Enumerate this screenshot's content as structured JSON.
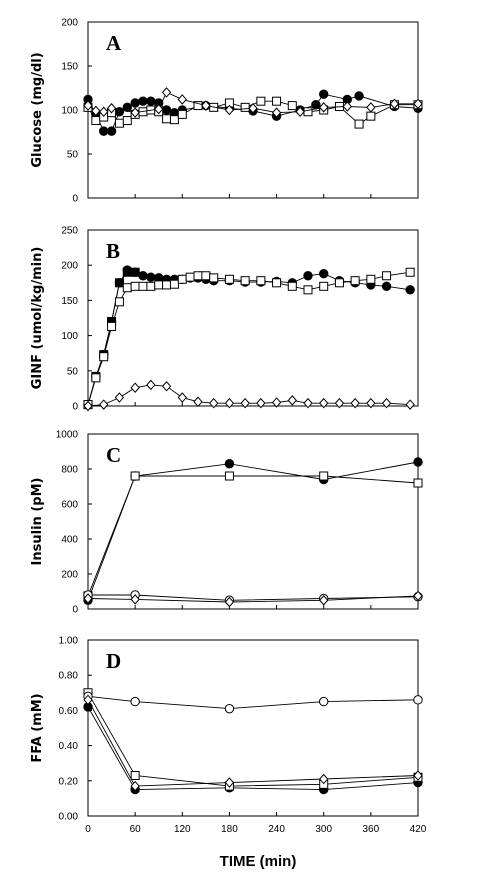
{
  "chart_data": [
    {
      "type": "line",
      "panel_label": "A",
      "ylabel": "Glucose (mg/dl)",
      "ylim": [
        0,
        200
      ],
      "yticks": [
        "0",
        "50",
        "100",
        "150",
        "200"
      ],
      "xlim": [
        0,
        420
      ],
      "grid": false,
      "series": [
        {
          "marker": "filled-circle",
          "x": [
            0,
            10,
            20,
            30,
            40,
            50,
            60,
            70,
            80,
            90,
            100,
            110,
            120,
            150,
            180,
            210,
            240,
            270,
            290,
            300,
            330,
            345,
            390,
            420
          ],
          "y": [
            112,
            95,
            76,
            76,
            98,
            103,
            108,
            110,
            110,
            108,
            100,
            97,
            100,
            105,
            102,
            99,
            93,
            100,
            106,
            118,
            112,
            116,
            104,
            102
          ]
        },
        {
          "marker": "open-square",
          "x": [
            0,
            10,
            20,
            30,
            40,
            50,
            60,
            70,
            80,
            90,
            100,
            110,
            120,
            140,
            160,
            180,
            200,
            220,
            240,
            260,
            280,
            300,
            320,
            345,
            360,
            390,
            420
          ],
          "y": [
            103,
            88,
            92,
            97,
            85,
            88,
            95,
            98,
            100,
            98,
            90,
            89,
            95,
            105,
            103,
            108,
            103,
            110,
            110,
            105,
            98,
            100,
            104,
            84,
            93,
            106,
            106
          ]
        },
        {
          "marker": "open-diamond",
          "x": [
            0,
            10,
            20,
            30,
            60,
            90,
            100,
            120,
            150,
            180,
            210,
            240,
            270,
            300,
            330,
            360,
            390,
            420
          ],
          "y": [
            105,
            99,
            98,
            102,
            97,
            101,
            120,
            112,
            105,
            100,
            102,
            97,
            98,
            103,
            104,
            103,
            107,
            107
          ]
        }
      ]
    },
    {
      "type": "line",
      "panel_label": "B",
      "ylabel": "GINF (umol/kg/min)",
      "ylim": [
        0,
        250
      ],
      "yticks": [
        "0",
        "50",
        "100",
        "150",
        "200",
        "250"
      ],
      "xlim": [
        0,
        420
      ],
      "grid": false,
      "series": [
        {
          "marker": "filled-circle",
          "x": [
            0,
            10,
            20,
            30,
            40,
            50,
            60,
            70,
            80,
            90,
            100,
            110,
            120,
            130,
            140,
            150,
            160,
            180,
            200,
            220,
            240,
            260,
            280,
            300,
            320,
            340,
            360,
            380,
            410
          ],
          "y": [
            2,
            42,
            73,
            120,
            175,
            193,
            190,
            185,
            183,
            182,
            180,
            180,
            180,
            182,
            182,
            180,
            178,
            178,
            176,
            176,
            177,
            175,
            185,
            188,
            178,
            175,
            172,
            170,
            165
          ]
        },
        {
          "marker": "filled-square",
          "x": [
            0,
            10,
            20,
            30,
            40,
            50,
            60
          ],
          "y": [
            2,
            42,
            73,
            120,
            175,
            190,
            190
          ]
        },
        {
          "marker": "open-square",
          "x": [
            0,
            10,
            20,
            30,
            40,
            50,
            60,
            70,
            80,
            90,
            100,
            110,
            120,
            130,
            140,
            150,
            160,
            180,
            200,
            220,
            240,
            260,
            280,
            300,
            320,
            340,
            360,
            380,
            410
          ],
          "y": [
            2,
            40,
            70,
            113,
            148,
            168,
            170,
            170,
            170,
            172,
            172,
            173,
            180,
            183,
            185,
            185,
            182,
            180,
            178,
            178,
            175,
            170,
            165,
            170,
            175,
            178,
            180,
            185,
            190
          ]
        },
        {
          "marker": "open-diamond",
          "x": [
            0,
            20,
            40,
            60,
            80,
            100,
            120,
            140,
            160,
            180,
            200,
            220,
            240,
            260,
            280,
            300,
            320,
            340,
            360,
            380,
            410
          ],
          "y": [
            0,
            2,
            12,
            26,
            30,
            28,
            12,
            6,
            4,
            4,
            4,
            4,
            5,
            8,
            4,
            4,
            4,
            4,
            4,
            4,
            2
          ]
        }
      ]
    },
    {
      "type": "line",
      "panel_label": "C",
      "ylabel": "Insulin (pM)",
      "ylim": [
        0,
        1000
      ],
      "yticks": [
        "0",
        "200",
        "400",
        "600",
        "800",
        "1000"
      ],
      "xlim": [
        0,
        420
      ],
      "grid": false,
      "series": [
        {
          "marker": "filled-circle",
          "x": [
            0,
            60,
            180,
            300,
            420
          ],
          "y": [
            50,
            760,
            830,
            740,
            840
          ]
        },
        {
          "marker": "open-square",
          "x": [
            0,
            60,
            180,
            300,
            420
          ],
          "y": [
            75,
            760,
            760,
            760,
            720
          ]
        },
        {
          "marker": "open-circle",
          "x": [
            0,
            60,
            180,
            300,
            420
          ],
          "y": [
            80,
            80,
            50,
            60,
            70
          ]
        },
        {
          "marker": "open-diamond",
          "x": [
            0,
            60,
            180,
            300,
            420
          ],
          "y": [
            60,
            55,
            40,
            50,
            75
          ]
        }
      ]
    },
    {
      "type": "line",
      "panel_label": "D",
      "ylabel": "FFA (mM)",
      "xlabel": "TIME (min)",
      "ylim": [
        0,
        1
      ],
      "yticks": [
        "0.00",
        "0.20",
        "0.40",
        "0.60",
        "0.80",
        "1.00"
      ],
      "xlim": [
        0,
        420
      ],
      "xticks": [
        "0",
        "60",
        "120",
        "180",
        "240",
        "300",
        "360",
        "420"
      ],
      "grid": false,
      "series": [
        {
          "marker": "filled-circle",
          "x": [
            0,
            60,
            180,
            300,
            420
          ],
          "y": [
            0.62,
            0.15,
            0.16,
            0.15,
            0.19
          ]
        },
        {
          "marker": "open-square",
          "x": [
            0,
            60,
            180,
            300,
            420
          ],
          "y": [
            0.7,
            0.23,
            0.17,
            0.18,
            0.22
          ]
        },
        {
          "marker": "open-circle",
          "x": [
            0,
            60,
            180,
            300,
            420
          ],
          "y": [
            0.68,
            0.65,
            0.61,
            0.65,
            0.66
          ]
        },
        {
          "marker": "open-diamond",
          "x": [
            0,
            60,
            180,
            300,
            420
          ],
          "y": [
            0.66,
            0.17,
            0.19,
            0.21,
            0.23
          ]
        }
      ]
    }
  ]
}
